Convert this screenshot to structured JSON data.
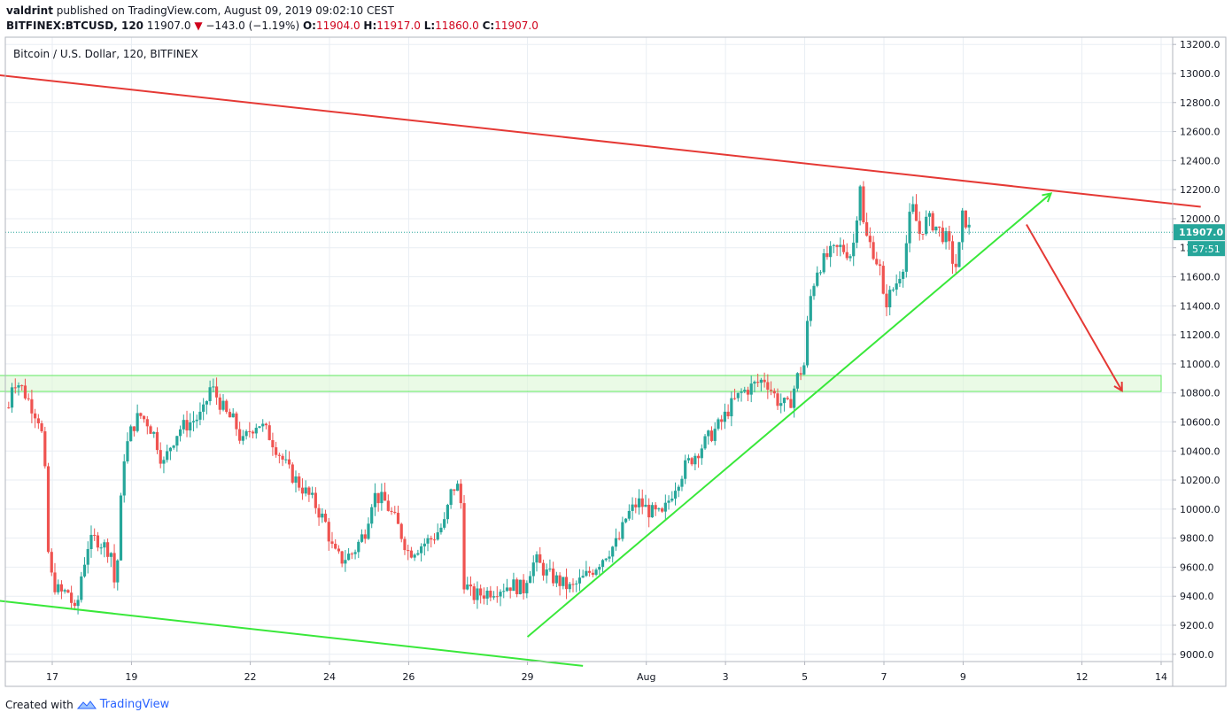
{
  "header": {
    "author": "valdrint",
    "published_text": "published on TradingView.com, August 09, 2019 09:02:10 CEST",
    "symbol": "BITFINEX:BTCUSD, 120",
    "last": "11907.0",
    "change": "−143.0 (−1.19%)",
    "o_label": "O:",
    "o_value": "11904.0",
    "h_label": "H:",
    "h_value": "11917.0",
    "l_label": "L:",
    "l_value": "11860.0",
    "c_label": "C:",
    "c_value": "11907.0",
    "down_arrow": "▼"
  },
  "footer": {
    "created_with": "Created with",
    "brand": "TradingView"
  },
  "colors": {
    "up": "#26a69a",
    "down": "#ef5350",
    "upper_trend": "#e53935",
    "green_line": "#39e83a",
    "zone_fill": "#dcf7d6",
    "zone_stroke": "#5fe85f",
    "price_tag": "#26a69a",
    "grid": "#e9eef3"
  },
  "chart_data": {
    "type": "candlestick",
    "title": "Bitcoin / U.S. Dollar, 120, BITFINEX",
    "ylim": [
      8950,
      13250
    ],
    "y_ticks": [
      9000,
      9200,
      9400,
      9600,
      9800,
      10000,
      10200,
      10400,
      10600,
      10800,
      11000,
      11200,
      11400,
      11600,
      11800,
      12000,
      12200,
      12400,
      12600,
      12800,
      13000,
      13200
    ],
    "y_tick_labels": [
      "9000.0",
      "9200.0",
      "9400.0",
      "9600.0",
      "9800.0",
      "10000.0",
      "10200.0",
      "10400.0",
      "10600.0",
      "10800.0",
      "11000.0",
      "11200.0",
      "11400.0",
      "11600.0",
      "11800.0",
      "12000.0",
      "12200.0",
      "12400.0",
      "12600.0",
      "12800.0",
      "13000.0",
      "13200.0"
    ],
    "x_ticks": [
      {
        "day": 17,
        "label": "17"
      },
      {
        "day": 19,
        "label": "19"
      },
      {
        "day": 22,
        "label": "22"
      },
      {
        "day": 24,
        "label": "24"
      },
      {
        "day": 26,
        "label": "26"
      },
      {
        "day": 29,
        "label": "29"
      },
      {
        "day": 32,
        "label": "Aug"
      },
      {
        "day": 34,
        "label": "3"
      },
      {
        "day": 36,
        "label": "5"
      },
      {
        "day": 38,
        "label": "7"
      },
      {
        "day": 40,
        "label": "9"
      },
      {
        "day": 43,
        "label": "12"
      },
      {
        "day": 45,
        "label": "14"
      }
    ],
    "last_price": 11907.0,
    "last_price_label": "11907.0",
    "countdown_label": "57:51",
    "price_path": [
      [
        15.9,
        10700
      ],
      [
        16.0,
        10900
      ],
      [
        16.2,
        10850
      ],
      [
        16.5,
        10700
      ],
      [
        16.7,
        10600
      ],
      [
        16.8,
        10350
      ],
      [
        16.9,
        9700
      ],
      [
        17.0,
        9500
      ],
      [
        17.2,
        9420
      ],
      [
        17.4,
        9430
      ],
      [
        17.5,
        9350
      ],
      [
        17.6,
        9250
      ],
      [
        17.7,
        9500
      ],
      [
        17.9,
        9750
      ],
      [
        18.1,
        9800
      ],
      [
        18.3,
        9750
      ],
      [
        18.5,
        9700
      ],
      [
        18.6,
        9400
      ],
      [
        18.7,
        9900
      ],
      [
        18.8,
        10350
      ],
      [
        19.0,
        10550
      ],
      [
        19.2,
        10650
      ],
      [
        19.4,
        10600
      ],
      [
        19.6,
        10500
      ],
      [
        19.8,
        10300
      ],
      [
        20.0,
        10450
      ],
      [
        20.2,
        10550
      ],
      [
        20.5,
        10600
      ],
      [
        20.8,
        10650
      ],
      [
        21.0,
        10850
      ],
      [
        21.2,
        10750
      ],
      [
        21.4,
        10650
      ],
      [
        21.6,
        10600
      ],
      [
        21.8,
        10450
      ],
      [
        22.0,
        10550
      ],
      [
        22.2,
        10600
      ],
      [
        22.5,
        10500
      ],
      [
        22.8,
        10350
      ],
      [
        23.0,
        10250
      ],
      [
        23.3,
        10150
      ],
      [
        23.6,
        10050
      ],
      [
        23.9,
        9900
      ],
      [
        24.1,
        9700
      ],
      [
        24.3,
        9650
      ],
      [
        24.6,
        9700
      ],
      [
        24.9,
        9850
      ],
      [
        25.1,
        10100
      ],
      [
        25.4,
        10050
      ],
      [
        25.7,
        9900
      ],
      [
        26.0,
        9700
      ],
      [
        26.3,
        9750
      ],
      [
        26.6,
        9800
      ],
      [
        26.9,
        9900
      ],
      [
        27.1,
        10150
      ],
      [
        27.3,
        10150
      ],
      [
        27.4,
        9500
      ],
      [
        27.6,
        9400
      ],
      [
        27.9,
        9420
      ],
      [
        28.2,
        9450
      ],
      [
        28.6,
        9480
      ],
      [
        28.9,
        9450
      ],
      [
        29.0,
        9550
      ],
      [
        29.2,
        9650
      ],
      [
        29.5,
        9550
      ],
      [
        29.8,
        9500
      ],
      [
        30.1,
        9450
      ],
      [
        30.4,
        9520
      ],
      [
        30.7,
        9600
      ],
      [
        31.0,
        9700
      ],
      [
        31.3,
        9780
      ],
      [
        31.5,
        9950
      ],
      [
        31.8,
        10050
      ],
      [
        32.1,
        9980
      ],
      [
        32.4,
        9950
      ],
      [
        32.7,
        10150
      ],
      [
        33.0,
        10300
      ],
      [
        33.3,
        10400
      ],
      [
        33.6,
        10500
      ],
      [
        33.9,
        10600
      ],
      [
        34.1,
        10700
      ],
      [
        34.4,
        10800
      ],
      [
        34.7,
        10850
      ],
      [
        35.0,
        10900
      ],
      [
        35.3,
        10750
      ],
      [
        35.6,
        10700
      ],
      [
        35.8,
        10900
      ],
      [
        36.0,
        11000
      ],
      [
        36.1,
        11400
      ],
      [
        36.3,
        11650
      ],
      [
        36.6,
        11750
      ],
      [
        36.9,
        11800
      ],
      [
        37.2,
        11750
      ],
      [
        37.4,
        12250
      ],
      [
        37.5,
        11900
      ],
      [
        37.7,
        11800
      ],
      [
        37.9,
        11650
      ],
      [
        38.0,
        11400
      ],
      [
        38.3,
        11550
      ],
      [
        38.5,
        11700
      ],
      [
        38.7,
        12100
      ],
      [
        38.9,
        11900
      ],
      [
        39.1,
        12000
      ],
      [
        39.3,
        11950
      ],
      [
        39.6,
        11850
      ],
      [
        39.8,
        11650
      ],
      [
        39.9,
        11800
      ],
      [
        40.0,
        12050
      ],
      [
        40.1,
        11950
      ],
      [
        40.2,
        11907
      ]
    ],
    "annotations": {
      "resistance_line": {
        "from": [
          15.6,
          12990
        ],
        "to": [
          46.0,
          12082
        ],
        "color": "upper_trend"
      },
      "lower_channel": {
        "from": [
          15.6,
          9370
        ],
        "to": [
          30.4,
          8920
        ],
        "color": "green_line"
      },
      "support_trend": {
        "from": [
          29.0,
          9120
        ],
        "to": [
          42.2,
          12170
        ],
        "color": "green_line",
        "arrow": true
      },
      "projection_arrow": {
        "from": [
          41.6,
          11960
        ],
        "to": [
          44.0,
          10820
        ],
        "color": "upper_trend",
        "arrow": true
      },
      "support_zone": {
        "from_day": 15.6,
        "to_day": 45.0,
        "low": 10810,
        "high": 10920
      }
    }
  }
}
